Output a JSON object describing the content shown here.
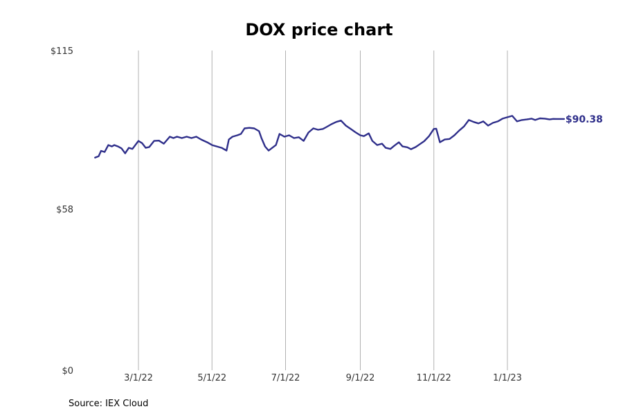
{
  "chart_data": {
    "type": "line",
    "title": "DOX price chart",
    "xlabel": "",
    "ylabel": "",
    "source": "Source: IEX Cloud",
    "x_ticks": [
      {
        "date": "2022-03-01",
        "label": "3/1/22"
      },
      {
        "date": "2022-05-01",
        "label": "5/1/22"
      },
      {
        "date": "2022-07-01",
        "label": "7/1/22"
      },
      {
        "date": "2022-09-01",
        "label": "9/1/22"
      },
      {
        "date": "2022-11-01",
        "label": "11/1/22"
      },
      {
        "date": "2023-01-01",
        "label": "1/1/23"
      }
    ],
    "y_ticks": [
      {
        "value": 0,
        "label": "$0"
      },
      {
        "value": 58,
        "label": "$58"
      },
      {
        "value": 115,
        "label": "$115"
      }
    ],
    "ylim": [
      0,
      115
    ],
    "xlim": [
      "2022-01-24",
      "2023-02-28"
    ],
    "grid": {
      "vertical": true,
      "horizontal": false
    },
    "last_value_label": "$90.38",
    "colors": {
      "line": "#2e2e8a",
      "grid": "#b0b0b0"
    },
    "series": [
      {
        "x": [
          "2022-01-24",
          "2022-01-27",
          "2022-01-29",
          "2022-02-01",
          "2022-02-04",
          "2022-02-07",
          "2022-02-09",
          "2022-02-12",
          "2022-02-15",
          "2022-02-18",
          "2022-02-21",
          "2022-02-24",
          "2022-03-01",
          "2022-03-04",
          "2022-03-07",
          "2022-03-10",
          "2022-03-14",
          "2022-03-18",
          "2022-03-22",
          "2022-03-27",
          "2022-03-30",
          "2022-04-02",
          "2022-04-06",
          "2022-04-10",
          "2022-04-14",
          "2022-04-18",
          "2022-04-22",
          "2022-04-27",
          "2022-05-01",
          "2022-05-05",
          "2022-05-09",
          "2022-05-13",
          "2022-05-15",
          "2022-05-18",
          "2022-05-22",
          "2022-05-25",
          "2022-05-28",
          "2022-06-01",
          "2022-06-05",
          "2022-06-09",
          "2022-06-11",
          "2022-06-14",
          "2022-06-17",
          "2022-06-20",
          "2022-06-23",
          "2022-06-26",
          "2022-06-30",
          "2022-07-04",
          "2022-07-08",
          "2022-07-12",
          "2022-07-16",
          "2022-07-20",
          "2022-07-24",
          "2022-07-28",
          "2022-08-01",
          "2022-08-04",
          "2022-08-08",
          "2022-08-12",
          "2022-08-16",
          "2022-08-20",
          "2022-08-24",
          "2022-08-28",
          "2022-09-01",
          "2022-09-04",
          "2022-09-08",
          "2022-09-11",
          "2022-09-15",
          "2022-09-19",
          "2022-09-22",
          "2022-09-26",
          "2022-09-29",
          "2022-10-03",
          "2022-10-06",
          "2022-10-10",
          "2022-10-13",
          "2022-10-17",
          "2022-10-20",
          "2022-10-24",
          "2022-10-28",
          "2022-11-01",
          "2022-11-03",
          "2022-11-06",
          "2022-11-10",
          "2022-11-14",
          "2022-11-18",
          "2022-11-22",
          "2022-11-26",
          "2022-11-30",
          "2022-12-04",
          "2022-12-08",
          "2022-12-12",
          "2022-12-16",
          "2022-12-20",
          "2022-12-24",
          "2022-12-28",
          "2023-01-01",
          "2023-01-05",
          "2023-01-09",
          "2023-01-13",
          "2023-01-17",
          "2023-01-21",
          "2023-01-24",
          "2023-01-28",
          "2023-02-01",
          "2023-02-05",
          "2023-02-08",
          "2023-02-11",
          "2023-02-14",
          "2023-02-17"
        ],
        "values": [
          76.5,
          77.0,
          78.9,
          78.5,
          81.0,
          80.5,
          81.0,
          80.5,
          79.8,
          78.0,
          80.0,
          79.6,
          82.5,
          81.7,
          80.0,
          80.3,
          82.5,
          82.6,
          81.5,
          84.0,
          83.5,
          84.0,
          83.5,
          84.0,
          83.5,
          84.0,
          83.0,
          82.0,
          81.0,
          80.5,
          80.0,
          79.0,
          83.0,
          84.0,
          84.5,
          85.0,
          87.0,
          87.2,
          87.0,
          86.0,
          83.5,
          80.5,
          79.0,
          80.0,
          81.0,
          85.0,
          84.0,
          84.5,
          83.5,
          83.8,
          82.5,
          85.5,
          87.0,
          86.5,
          86.8,
          87.5,
          88.5,
          89.3,
          89.8,
          88.0,
          86.8,
          85.6,
          84.5,
          84.2,
          85.2,
          82.5,
          81.0,
          81.5,
          80.0,
          79.6,
          80.7,
          82.0,
          80.5,
          80.2,
          79.5,
          80.3,
          81.2,
          82.4,
          84.2,
          86.8,
          86.9,
          82.0,
          83.0,
          83.2,
          84.5,
          86.2,
          87.7,
          90.0,
          89.3,
          88.8,
          89.5,
          88.0,
          89.0,
          89.5,
          90.5,
          91.0,
          91.5,
          89.5,
          90.0,
          90.2,
          90.5,
          90.0,
          90.6,
          90.5,
          90.2,
          90.4,
          90.38,
          90.38,
          90.38
        ]
      }
    ]
  }
}
